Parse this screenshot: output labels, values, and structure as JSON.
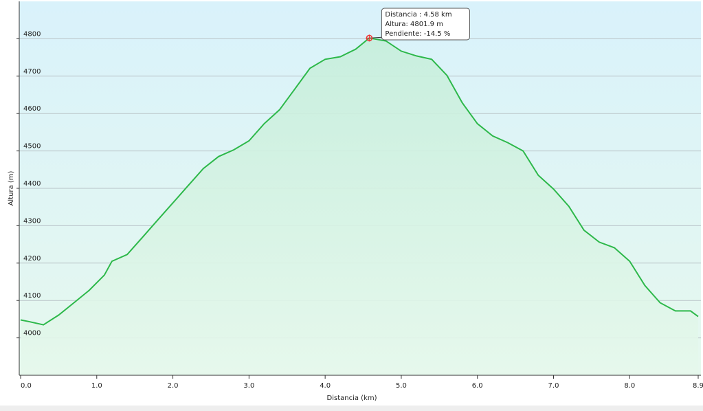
{
  "chart_data": {
    "type": "area",
    "x": [
      0.0,
      0.1,
      0.3,
      0.5,
      0.7,
      0.9,
      1.1,
      1.2,
      1.4,
      1.6,
      1.8,
      2.0,
      2.2,
      2.4,
      2.6,
      2.8,
      3.0,
      3.2,
      3.4,
      3.6,
      3.8,
      4.0,
      4.2,
      4.4,
      4.58,
      4.8,
      5.0,
      5.2,
      5.4,
      5.6,
      5.8,
      6.0,
      6.2,
      6.4,
      6.6,
      6.8,
      7.0,
      7.2,
      7.4,
      7.6,
      7.8,
      8.0,
      8.2,
      8.4,
      8.6,
      8.8,
      8.9
    ],
    "values": [
      4048,
      4044,
      4035,
      4061,
      4094,
      4127,
      4168,
      4205,
      4223,
      4269,
      4315,
      4361,
      4407,
      4453,
      4485,
      4503,
      4527,
      4573,
      4610,
      4665,
      4721,
      4745,
      4752,
      4772,
      4802,
      4794,
      4767,
      4754,
      4745,
      4702,
      4629,
      4573,
      4540,
      4522,
      4500,
      4435,
      4398,
      4352,
      4288,
      4256,
      4241,
      4205,
      4140,
      4094,
      4072,
      4072,
      4057
    ],
    "color": "#2db84a",
    "x_label": "Distancia  (km)",
    "y_label": "Altura (m)",
    "xlim": [
      0,
      8.9
    ],
    "ylim": [
      3900,
      4900
    ],
    "xticks": [
      {
        "value": 0,
        "label": "0.0"
      },
      {
        "value": 1,
        "label": "1.0"
      },
      {
        "value": 2,
        "label": "2.0"
      },
      {
        "value": 3,
        "label": "3.0"
      },
      {
        "value": 4,
        "label": "4.0"
      },
      {
        "value": 5,
        "label": "5.0"
      },
      {
        "value": 6,
        "label": "6.0"
      },
      {
        "value": 7,
        "label": "7.0"
      },
      {
        "value": 8,
        "label": "8.0"
      },
      8.9
    ],
    "yticks": [
      4000,
      4100,
      4200,
      4300,
      4400,
      4500,
      4600,
      4700,
      4800
    ],
    "grid": true,
    "annotation": {
      "x": 4.58,
      "y": 4801.9,
      "lines": [
        "Distancia : 4.58 km",
        "Altura: 4801.9 m",
        "Pendiente: -14.5 %"
      ]
    }
  }
}
